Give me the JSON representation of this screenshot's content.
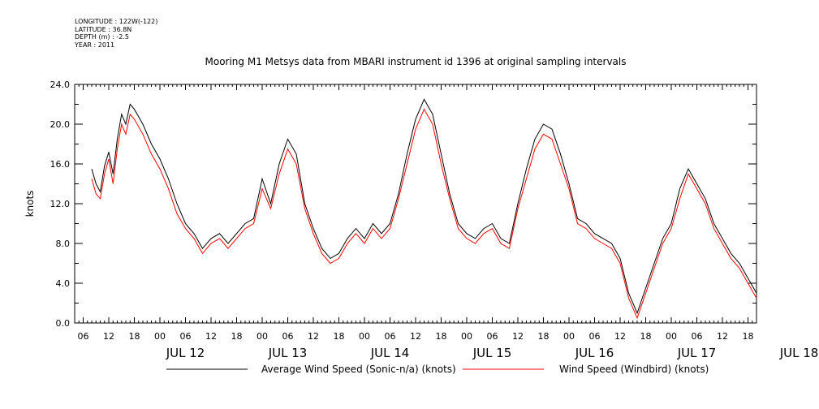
{
  "metadata": {
    "lines": [
      "LONGITUDE : 122W(-122)",
      "LATITUDE : 36.8N",
      "DEPTH (m) : -2.5",
      "YEAR : 2011"
    ]
  },
  "colors": {
    "series_avg": "#000000",
    "series_windbird": "#ff0000"
  },
  "chart_data": {
    "type": "line",
    "title": "Mooring M1 Metsys data from MBARI instrument id 1396 at original sampling intervals",
    "ylabel": "knots",
    "ylim": [
      0,
      24
    ],
    "yticks": [
      "0.0",
      "4.0",
      "8.0",
      "12.0",
      "16.0",
      "20.0",
      "24.0"
    ],
    "xlim_hours": [
      -20,
      140
    ],
    "hour_tick_labels": [
      "00",
      "06",
      "12",
      "18"
    ],
    "day_labels": [
      "JUL 12",
      "JUL 13",
      "JUL 14",
      "JUL 15",
      "JUL 16",
      "JUL 17",
      "JUL 18"
    ],
    "grid": false,
    "legend_position": "bottom",
    "series": [
      {
        "name": "Average Wind Speed (Sonic-n/a) (knots)",
        "x_hours": [
          -16,
          -15,
          -14,
          -13,
          -12,
          -11,
          -10,
          -9,
          -8,
          -7,
          -6,
          -4,
          -2,
          0,
          2,
          4,
          6,
          8,
          10,
          12,
          14,
          16,
          18,
          20,
          22,
          24,
          26,
          28,
          30,
          32,
          34,
          36,
          38,
          40,
          42,
          44,
          46,
          48,
          50,
          52,
          54,
          56,
          58,
          60,
          62,
          64,
          66,
          68,
          70,
          72,
          74,
          76,
          78,
          80,
          82,
          84,
          86,
          88,
          90,
          92,
          94,
          96,
          98,
          100,
          102,
          104,
          106,
          108,
          110,
          112,
          114,
          116,
          118,
          120,
          122,
          124,
          126,
          128,
          130,
          132,
          134,
          136,
          138,
          140
        ],
        "values": [
          15.5,
          14.0,
          13.2,
          15.8,
          17.2,
          15.0,
          18.5,
          21.0,
          20.0,
          22.0,
          21.5,
          20.0,
          18.0,
          16.5,
          14.5,
          12.0,
          10.0,
          9.0,
          7.5,
          8.5,
          9.0,
          8.0,
          9.0,
          10.0,
          10.5,
          14.5,
          12.0,
          16.0,
          18.5,
          17.0,
          12.0,
          9.5,
          7.5,
          6.5,
          7.0,
          8.5,
          9.5,
          8.5,
          10.0,
          9.0,
          10.0,
          13.0,
          17.0,
          20.5,
          22.5,
          21.0,
          17.0,
          13.0,
          10.0,
          9.0,
          8.5,
          9.5,
          10.0,
          8.5,
          8.0,
          12.0,
          15.5,
          18.5,
          20.0,
          19.5,
          17.0,
          14.0,
          10.5,
          10.0,
          9.0,
          8.5,
          8.0,
          6.5,
          3.0,
          1.0,
          3.5,
          6.0,
          8.5,
          10.0,
          13.5,
          15.5,
          14.0,
          12.5,
          10.0,
          8.5,
          7.0,
          6.0,
          4.5,
          3.0
        ]
      },
      {
        "name": "Wind Speed (Windbird) (knots)",
        "x_hours": [
          -16,
          -15,
          -14,
          -13,
          -12,
          -11,
          -10,
          -9,
          -8,
          -7,
          -6,
          -4,
          -2,
          0,
          2,
          4,
          6,
          8,
          10,
          12,
          14,
          16,
          18,
          20,
          22,
          24,
          26,
          28,
          30,
          32,
          34,
          36,
          38,
          40,
          42,
          44,
          46,
          48,
          50,
          52,
          54,
          56,
          58,
          60,
          62,
          64,
          66,
          68,
          70,
          72,
          74,
          76,
          78,
          80,
          82,
          84,
          86,
          88,
          90,
          92,
          94,
          96,
          98,
          100,
          102,
          104,
          106,
          108,
          110,
          112,
          114,
          116,
          118,
          120,
          122,
          124,
          126,
          128,
          130,
          132,
          134,
          136,
          138,
          140
        ],
        "values": [
          14.5,
          13.0,
          12.5,
          15.0,
          16.5,
          14.0,
          17.5,
          20.0,
          19.0,
          21.0,
          20.5,
          19.0,
          17.0,
          15.5,
          13.5,
          11.0,
          9.5,
          8.5,
          7.0,
          8.0,
          8.5,
          7.5,
          8.5,
          9.5,
          10.0,
          13.5,
          11.5,
          15.0,
          17.5,
          16.0,
          11.5,
          9.0,
          7.0,
          6.0,
          6.5,
          8.0,
          9.0,
          8.0,
          9.5,
          8.5,
          9.5,
          12.5,
          16.0,
          19.5,
          21.5,
          20.0,
          16.0,
          12.5,
          9.5,
          8.5,
          8.0,
          9.0,
          9.5,
          8.0,
          7.5,
          11.5,
          14.5,
          17.5,
          19.0,
          18.5,
          16.0,
          13.5,
          10.0,
          9.5,
          8.5,
          8.0,
          7.5,
          6.0,
          2.5,
          0.5,
          3.0,
          5.5,
          8.0,
          9.5,
          12.5,
          15.0,
          13.5,
          12.0,
          9.5,
          8.0,
          6.5,
          5.5,
          4.0,
          2.5
        ]
      }
    ]
  }
}
